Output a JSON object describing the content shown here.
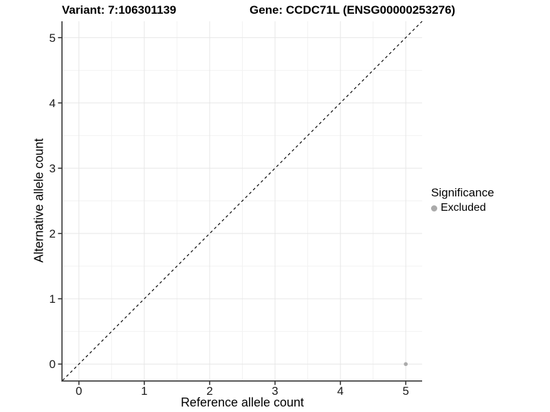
{
  "header": {
    "title_left": "Variant: 7:106301139",
    "title_right": "Gene: CCDC71L (ENSG00000253276)"
  },
  "chart_data": {
    "type": "scatter",
    "title": "Variant: 7:106301139    Gene: CCDC71L (ENSG00000253276)",
    "xlabel": "Reference allele count",
    "ylabel": "Alternative allele count",
    "xlim": [
      -0.25,
      5.25
    ],
    "ylim": [
      -0.25,
      5.25
    ],
    "x_ticks": [
      0,
      1,
      2,
      3,
      4,
      5
    ],
    "y_ticks": [
      0,
      1,
      2,
      3,
      4,
      5
    ],
    "minor_ticks": [
      0.5,
      1.5,
      2.5,
      3.5,
      4.5
    ],
    "grid": true,
    "reference_line": {
      "kind": "identity y=x",
      "style": "dashed",
      "color": "#000000"
    },
    "series": [
      {
        "name": "Excluded",
        "color": "#aaaaaa",
        "points": [
          {
            "x": 5,
            "y": 0
          }
        ]
      }
    ],
    "legend": {
      "title": "Significance",
      "position": "right",
      "items": [
        {
          "label": "Excluded",
          "color": "#aaaaaa"
        }
      ]
    },
    "colors": {
      "axis_line": "#333333",
      "grid_major": "#e6e6e6",
      "grid_minor": "#f2f2f2",
      "tick_text": "#1a1a1a",
      "background": "#ffffff"
    }
  }
}
